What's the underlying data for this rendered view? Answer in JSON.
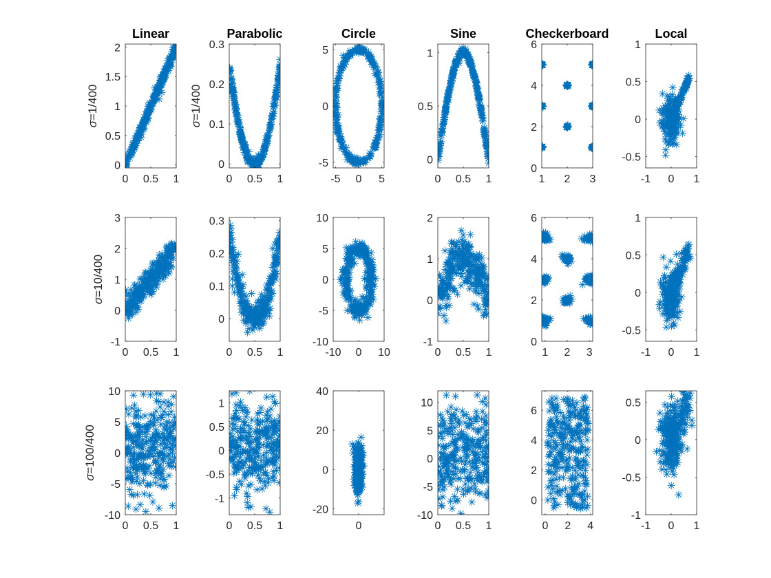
{
  "colors": {
    "marker": "#0072BD",
    "axis": "#262626",
    "background": "#ffffff"
  },
  "chart_data": {
    "type": "scatter",
    "marker": "asterisk",
    "columns": [
      "Linear",
      "Parabolic",
      "Circle",
      "Sine",
      "Checkerboard",
      "Local"
    ],
    "rows": [
      {
        "noise": "1/400",
        "label_symbol": "σ",
        "label_text": "=1/400",
        "xlabel_scale": ""
      },
      {
        "noise": "10/400",
        "label_symbol": "σ",
        "label_text": "=10/400"
      },
      {
        "noise": "100/400",
        "label_symbol": "σ",
        "label_text": "=100/400"
      }
    ],
    "row_label_columns": [
      [
        0,
        1
      ],
      [
        0
      ],
      [
        0
      ]
    ],
    "panels": [
      {
        "row": 0,
        "col": 0,
        "title": "Linear",
        "shape": "linear",
        "noise": 0.05,
        "xlim": [
          0,
          1
        ],
        "ylim": [
          -0.05,
          2.05
        ],
        "xticks": [
          0,
          0.5,
          1
        ],
        "xticklabels": [
          "0",
          "0.5",
          "1"
        ],
        "yticks": [
          0,
          0.5,
          1,
          1.5,
          2
        ],
        "yticklabels": [
          "0",
          "0.5",
          "1",
          "1.5",
          "2"
        ]
      },
      {
        "row": 0,
        "col": 1,
        "title": "Parabolic",
        "shape": "parabolic",
        "noise": 0.006,
        "xlim": [
          0,
          1
        ],
        "ylim": [
          -0.01,
          0.3
        ],
        "xticks": [
          0,
          0.5,
          1
        ],
        "xticklabels": [
          "0",
          "0.5",
          "1"
        ],
        "yticks": [
          0,
          0.1,
          0.2,
          0.3
        ],
        "yticklabels": [
          "0",
          "0.1",
          "0.2",
          "0.3"
        ]
      },
      {
        "row": 0,
        "col": 2,
        "title": "Circle",
        "shape": "circle",
        "noise": 0.15,
        "xlim": [
          -5.5,
          5.5
        ],
        "ylim": [
          -5.5,
          5.5
        ],
        "xticks": [
          -5,
          0,
          5
        ],
        "xticklabels": [
          "-5",
          "0",
          "5"
        ],
        "yticks": [
          -5,
          0,
          5
        ],
        "yticklabels": [
          "-5",
          "0",
          "5"
        ]
      },
      {
        "row": 0,
        "col": 3,
        "title": "Sine",
        "shape": "sine",
        "noise": 0.02,
        "xlim": [
          0,
          1
        ],
        "ylim": [
          -0.08,
          1.08
        ],
        "xticks": [
          0,
          0.5,
          1
        ],
        "xticklabels": [
          "0",
          "0.5",
          "1"
        ],
        "yticks": [
          0,
          0.5,
          1
        ],
        "yticklabels": [
          "0",
          "0.5",
          "1"
        ]
      },
      {
        "row": 0,
        "col": 4,
        "title": "Checkerboard",
        "shape": "checker",
        "noise": 0.02,
        "xlim": [
          1,
          3
        ],
        "ylim": [
          0,
          6
        ],
        "xticks": [
          1,
          2,
          3
        ],
        "xticklabels": [
          "1",
          "2",
          "3"
        ],
        "yticks": [
          0,
          2,
          4,
          6
        ],
        "yticklabels": [
          "0",
          "2",
          "4",
          "6"
        ]
      },
      {
        "row": 0,
        "col": 5,
        "title": "Local",
        "shape": "local",
        "noise": 0.03,
        "xlim": [
          -1,
          1
        ],
        "ylim": [
          -0.65,
          1
        ],
        "xticks": [
          -1,
          0,
          1
        ],
        "xticklabels": [
          "-1",
          "0",
          "1"
        ],
        "yticks": [
          -0.5,
          0,
          0.5,
          1
        ],
        "yticklabels": [
          "-0.5",
          "0",
          "0.5",
          "1"
        ]
      },
      {
        "row": 1,
        "col": 0,
        "title": "",
        "shape": "linear",
        "noise": 0.22,
        "xlim": [
          0,
          1
        ],
        "ylim": [
          -1,
          3
        ],
        "xticks": [
          0,
          0.5,
          1
        ],
        "xticklabels": [
          "0",
          "0.5",
          "1"
        ],
        "yticks": [
          -1,
          0,
          1,
          2,
          3
        ],
        "yticklabels": [
          "-1",
          "0",
          "1",
          "2",
          "3"
        ]
      },
      {
        "row": 1,
        "col": 1,
        "title": "",
        "shape": "parabolic",
        "noise": 0.03,
        "xlim": [
          0,
          1
        ],
        "ylim": [
          -0.07,
          0.31
        ],
        "xticks": [
          0,
          0.5,
          1
        ],
        "xticklabels": [
          "0",
          "0.5",
          "1"
        ],
        "yticks": [
          0,
          0.1,
          0.2,
          0.3
        ],
        "yticklabels": [
          "0",
          "0.1",
          "0.2",
          "0.3"
        ]
      },
      {
        "row": 1,
        "col": 2,
        "title": "",
        "shape": "circle",
        "noise": 0.8,
        "xlim": [
          -10,
          10
        ],
        "ylim": [
          -10,
          10
        ],
        "xticks": [
          -10,
          0,
          10
        ],
        "xticklabels": [
          "-10",
          "0",
          "10"
        ],
        "yticks": [
          -10,
          -5,
          0,
          5,
          10
        ],
        "yticklabels": [
          "-10",
          "-5",
          "0",
          "5",
          "10"
        ]
      },
      {
        "row": 1,
        "col": 3,
        "title": "",
        "shape": "sine",
        "noise": 0.3,
        "xlim": [
          0,
          1
        ],
        "ylim": [
          -1,
          2
        ],
        "xticks": [
          0,
          0.5,
          1
        ],
        "xticklabels": [
          "0",
          "0.5",
          "1"
        ],
        "yticks": [
          -1,
          0,
          1,
          2
        ],
        "yticklabels": [
          "-1",
          "0",
          "1",
          "2"
        ]
      },
      {
        "row": 1,
        "col": 4,
        "title": "",
        "shape": "checker",
        "noise": 0.1,
        "xlim": [
          0.85,
          3.15
        ],
        "ylim": [
          0,
          6
        ],
        "xticks": [
          1,
          2,
          3
        ],
        "xticklabels": [
          "1",
          "2",
          "3"
        ],
        "yticks": [
          0,
          2,
          4,
          6
        ],
        "yticklabels": [
          "0",
          "2",
          "4",
          "6"
        ]
      },
      {
        "row": 1,
        "col": 5,
        "title": "",
        "shape": "local",
        "noise": 0.09,
        "xlim": [
          -1,
          1
        ],
        "ylim": [
          -0.65,
          1
        ],
        "xticks": [
          -1,
          0,
          1
        ],
        "xticklabels": [
          "-1",
          "0",
          "1"
        ],
        "yticks": [
          -0.5,
          0,
          0.5,
          1
        ],
        "yticklabels": [
          "-0.5",
          "0",
          "0.5",
          "1"
        ]
      },
      {
        "row": 2,
        "col": 0,
        "title": "",
        "shape": "linear",
        "noise": 3.5,
        "xlim": [
          0,
          1
        ],
        "ylim": [
          -10,
          10
        ],
        "xticks": [
          0,
          0.5,
          1
        ],
        "xticklabels": [
          "0",
          "0.5",
          "1"
        ],
        "yticks": [
          -10,
          -5,
          0,
          5,
          10
        ],
        "yticklabels": [
          "-10",
          "-5",
          "0",
          "5",
          "10"
        ]
      },
      {
        "row": 2,
        "col": 1,
        "title": "",
        "shape": "parabolic",
        "noise": 0.45,
        "xlim": [
          0,
          1
        ],
        "ylim": [
          -1.35,
          1.25
        ],
        "xticks": [
          0,
          0.5,
          1
        ],
        "xticklabels": [
          "0",
          "0.5",
          "1"
        ],
        "yticks": [
          -1,
          -0.5,
          0,
          0.5,
          1
        ],
        "yticklabels": [
          "-1",
          "-0.5",
          "0",
          "0.5",
          "1"
        ]
      },
      {
        "row": 2,
        "col": 2,
        "title": "",
        "shape": "circle",
        "noise": 8,
        "xlim": [
          -38,
          38
        ],
        "ylim": [
          -23,
          40
        ],
        "xticks": [
          0
        ],
        "xticklabels": [
          "0"
        ],
        "yticks": [
          -20,
          0,
          20,
          40
        ],
        "yticklabels": [
          "-20",
          "0",
          "20",
          "40"
        ]
      },
      {
        "row": 2,
        "col": 3,
        "title": "",
        "shape": "sine",
        "noise": 4.5,
        "xlim": [
          0,
          1
        ],
        "ylim": [
          -10,
          12
        ],
        "xticks": [
          0,
          0.5,
          1
        ],
        "xticklabels": [
          "0",
          "0.5",
          "1"
        ],
        "yticks": [
          -10,
          -5,
          0,
          5,
          10
        ],
        "yticklabels": [
          "-10",
          "-5",
          "0",
          "5",
          "10"
        ]
      },
      {
        "row": 2,
        "col": 4,
        "title": "",
        "shape": "checker",
        "noise": 1.6,
        "xlim": [
          -0.3,
          4.2
        ],
        "ylim": [
          -1,
          7.3
        ],
        "xticks": [
          0,
          2,
          4
        ],
        "xticklabels": [
          "0",
          "2",
          "4"
        ],
        "yticks": [
          0,
          2,
          4,
          6
        ],
        "yticklabels": [
          "0",
          "2",
          "4",
          "6"
        ]
      },
      {
        "row": 2,
        "col": 5,
        "title": "",
        "shape": "local",
        "noise": 0.2,
        "xlim": [
          -1,
          1
        ],
        "ylim": [
          -1,
          0.65
        ],
        "xticks": [
          -1,
          0,
          1
        ],
        "xticklabels": [
          "-1",
          "0",
          "1"
        ],
        "yticks": [
          -1,
          -0.5,
          0,
          0.5
        ],
        "yticklabels": [
          "-1",
          "-0.5",
          "0",
          "0.5"
        ]
      }
    ],
    "points_per_panel": 300
  }
}
